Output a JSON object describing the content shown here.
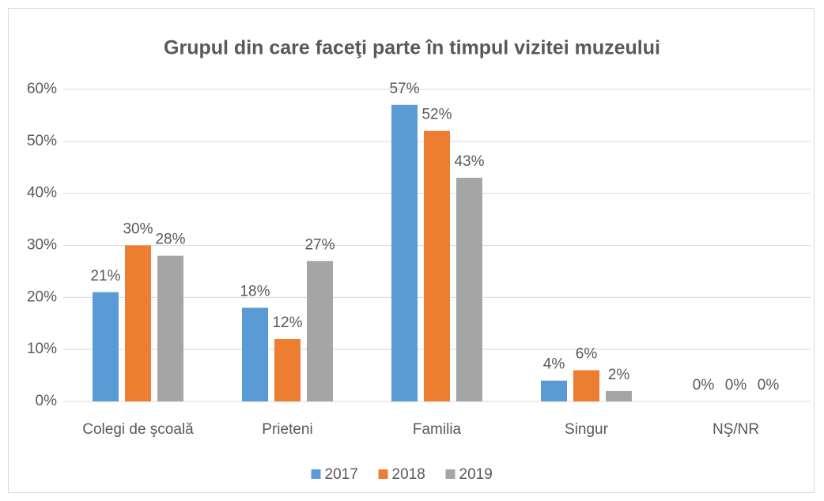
{
  "chart_data": {
    "type": "bar",
    "title": "Grupul din care faceţi parte în timpul vizitei muzeului",
    "categories": [
      "Colegi de şcoală",
      "Prieteni",
      "Familia",
      "Singur",
      "NŞ/NR"
    ],
    "series": [
      {
        "name": "2017",
        "color": "#5b9bd5",
        "values": [
          21,
          18,
          57,
          4,
          0
        ],
        "value_labels": [
          "21%",
          "18%",
          "57%",
          "4%",
          "0%"
        ]
      },
      {
        "name": "2018",
        "color": "#ed7d31",
        "values": [
          30,
          12,
          52,
          6,
          0
        ],
        "value_labels": [
          "30%",
          "12%",
          "52%",
          "6%",
          "0%"
        ]
      },
      {
        "name": "2019",
        "color": "#a5a5a5",
        "values": [
          28,
          27,
          43,
          2,
          0
        ],
        "value_labels": [
          "28%",
          "27%",
          "43%",
          "2%",
          "0%"
        ]
      }
    ],
    "ylim": [
      0,
      60
    ],
    "yticks": [
      {
        "value": 0,
        "label": "0%"
      },
      {
        "value": 10,
        "label": "10%"
      },
      {
        "value": 20,
        "label": "20%"
      },
      {
        "value": 30,
        "label": "30%"
      },
      {
        "value": 40,
        "label": "40%"
      },
      {
        "value": 50,
        "label": "50%"
      },
      {
        "value": 60,
        "label": "60%"
      }
    ],
    "grid": true,
    "legend": "bottom"
  }
}
